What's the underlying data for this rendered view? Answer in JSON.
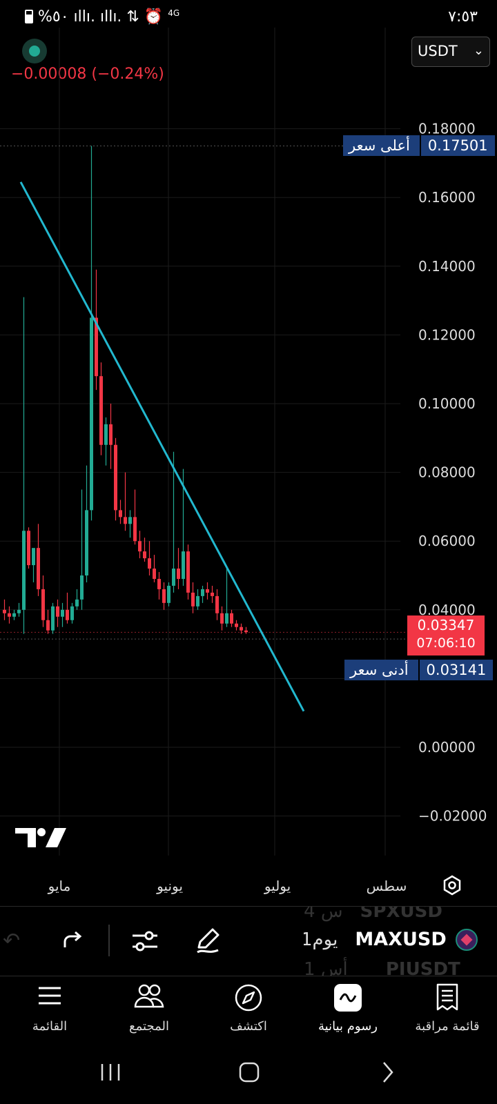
{
  "status_bar": {
    "left_text": "%٥٠ ıllı. ıllı. ⇅ ⏰",
    "network": "4G",
    "time": "٧:٥٣"
  },
  "header": {
    "price_change": "−0.00008 (−0.24%)",
    "currency": "USDT"
  },
  "chart_data": {
    "type": "candlestick",
    "x_axis_labels": [
      "مايو",
      "يونيو",
      "يوليو",
      "سطس"
    ],
    "y_ticks": [
      "0.18000",
      "0.16000",
      "0.14000",
      "0.12000",
      "0.10000",
      "0.08000",
      "0.06000",
      "0.04000",
      "0.00000",
      "−0.02000"
    ],
    "y_range": [
      -0.02,
      0.18
    ],
    "high": {
      "label": "أعلى سعر",
      "value": "0.17501"
    },
    "low": {
      "label": "أدنى سعر",
      "value": "0.03141"
    },
    "last": {
      "value": "0.03347",
      "countdown": "07:06:10"
    },
    "trendline": {
      "from": [
        0,
        0.1645
      ],
      "to": [
        80,
        0.0105
      ]
    },
    "colors": {
      "up": "#22ab94",
      "down": "#f23645",
      "trendline": "#22b8cf",
      "high_tag": "#1c3e7a"
    },
    "candles": [
      [
        0.04,
        0.043,
        0.037,
        0.039
      ],
      [
        0.039,
        0.041,
        0.036,
        0.038
      ],
      [
        0.038,
        0.04,
        0.037,
        0.039
      ],
      [
        0.039,
        0.042,
        0.038,
        0.04
      ],
      [
        0.04,
        0.131,
        0.033,
        0.063
      ],
      [
        0.063,
        0.064,
        0.052,
        0.053
      ],
      [
        0.053,
        0.057,
        0.048,
        0.058
      ],
      [
        0.058,
        0.065,
        0.044,
        0.046
      ],
      [
        0.046,
        0.05,
        0.035,
        0.037
      ],
      [
        0.037,
        0.04,
        0.033,
        0.034
      ],
      [
        0.034,
        0.042,
        0.033,
        0.041
      ],
      [
        0.041,
        0.043,
        0.035,
        0.038
      ],
      [
        0.038,
        0.042,
        0.035,
        0.04
      ],
      [
        0.04,
        0.045,
        0.036,
        0.037
      ],
      [
        0.037,
        0.042,
        0.036,
        0.041
      ],
      [
        0.041,
        0.046,
        0.04,
        0.043
      ],
      [
        0.043,
        0.075,
        0.04,
        0.05
      ],
      [
        0.05,
        0.082,
        0.048,
        0.069
      ],
      [
        0.069,
        0.175,
        0.066,
        0.125
      ],
      [
        0.125,
        0.139,
        0.104,
        0.108
      ],
      [
        0.108,
        0.112,
        0.085,
        0.088
      ],
      [
        0.088,
        0.096,
        0.082,
        0.094
      ],
      [
        0.094,
        0.1,
        0.081,
        0.088
      ],
      [
        0.088,
        0.09,
        0.066,
        0.069
      ],
      [
        0.069,
        0.072,
        0.065,
        0.067
      ],
      [
        0.067,
        0.08,
        0.063,
        0.065
      ],
      [
        0.065,
        0.069,
        0.061,
        0.067
      ],
      [
        0.067,
        0.075,
        0.059,
        0.06
      ],
      [
        0.06,
        0.063,
        0.055,
        0.057
      ],
      [
        0.057,
        0.061,
        0.054,
        0.055
      ],
      [
        0.055,
        0.06,
        0.05,
        0.052
      ],
      [
        0.052,
        0.056,
        0.048,
        0.049
      ],
      [
        0.049,
        0.051,
        0.043,
        0.046
      ],
      [
        0.046,
        0.048,
        0.04,
        0.042
      ],
      [
        0.042,
        0.048,
        0.041,
        0.047
      ],
      [
        0.047,
        0.086,
        0.045,
        0.052
      ],
      [
        0.052,
        0.058,
        0.046,
        0.049
      ],
      [
        0.049,
        0.081,
        0.047,
        0.057
      ],
      [
        0.057,
        0.059,
        0.043,
        0.045
      ],
      [
        0.045,
        0.048,
        0.039,
        0.041
      ],
      [
        0.041,
        0.046,
        0.04,
        0.044
      ],
      [
        0.044,
        0.047,
        0.042,
        0.046
      ],
      [
        0.046,
        0.048,
        0.043,
        0.045
      ],
      [
        0.045,
        0.047,
        0.042,
        0.044
      ],
      [
        0.044,
        0.046,
        0.037,
        0.039
      ],
      [
        0.039,
        0.041,
        0.034,
        0.036
      ],
      [
        0.036,
        0.052,
        0.035,
        0.039
      ],
      [
        0.039,
        0.04,
        0.035,
        0.036
      ],
      [
        0.036,
        0.037,
        0.034,
        0.035
      ],
      [
        0.035,
        0.036,
        0.033,
        0.034
      ],
      [
        0.034,
        0.035,
        0.033,
        0.0335
      ]
    ]
  },
  "toolbar": {
    "symbols": {
      "prev": "SPXUSD",
      "prev_interval": "4 س",
      "current": "MAXUSD",
      "current_interval": "1يوم",
      "next": "PIUSDT",
      "next_interval": "1 أس"
    }
  },
  "bottom_nav": {
    "items": [
      {
        "label": "القائمة",
        "icon": "menu-icon"
      },
      {
        "label": "المجتمع",
        "icon": "community-icon"
      },
      {
        "label": "اكتشف",
        "icon": "compass-icon"
      },
      {
        "label": "رسوم بيانية",
        "icon": "chart-icon"
      },
      {
        "label": "قائمة مراقبة",
        "icon": "watchlist-icon"
      }
    ]
  }
}
